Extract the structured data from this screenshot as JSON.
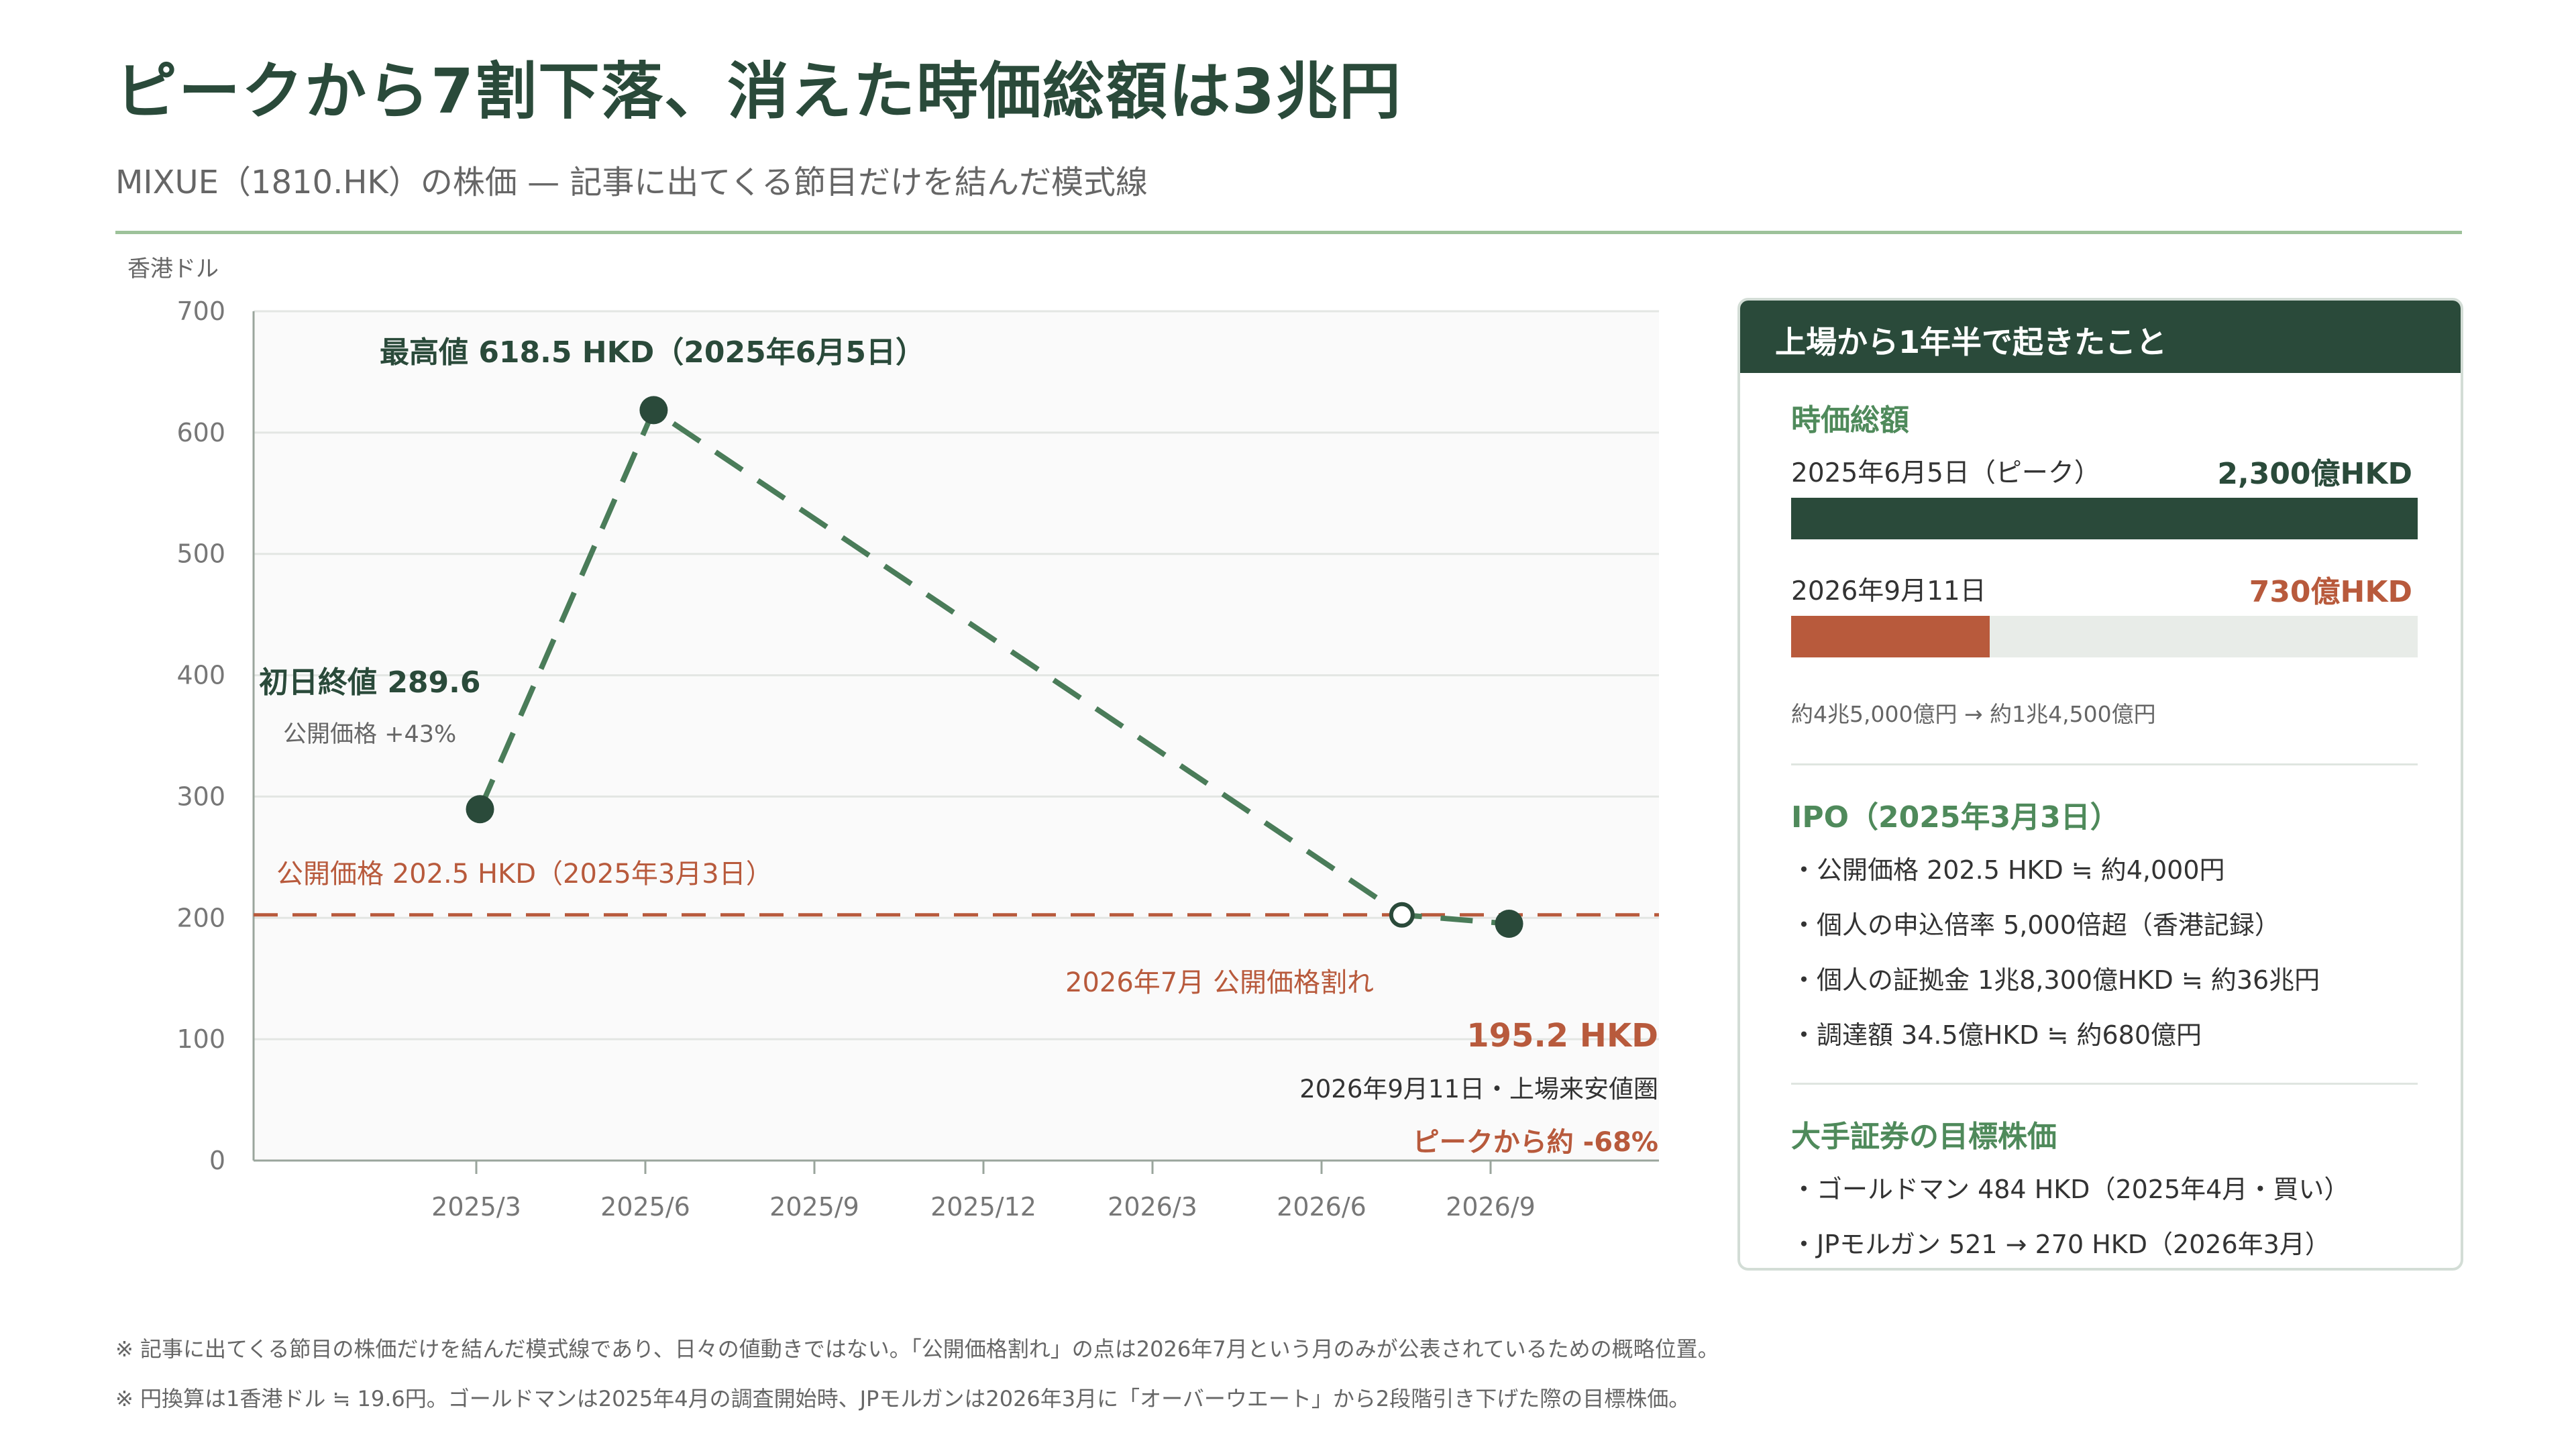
{
  "header": {
    "title": "ピークから7割下落、消えた時価総額は3兆円",
    "subtitle": "MIXUE（1810.HK）の株価 — 記事に出てくる節目だけを結んだ模式線"
  },
  "chart_data": {
    "type": "line",
    "ylabel": "香港ドル",
    "ylim": [
      0,
      700
    ],
    "yticks": [
      "0",
      "100",
      "200",
      "300",
      "400",
      "500",
      "600",
      "700"
    ],
    "xtick_labels": [
      "2025/3",
      "2025/6",
      "2025/9",
      "2025/12",
      "2026/3",
      "2026/6",
      "2026/9"
    ],
    "series": [
      {
        "points": [
          {
            "x": "2025-03-03",
            "y": 289.6,
            "marker": "filled"
          },
          {
            "x": "2025-06-05",
            "y": 618.5,
            "marker": "filled"
          },
          {
            "x": "2026-07-15",
            "y": 202.5,
            "marker": "hollow"
          },
          {
            "x": "2026-09-11",
            "y": 195.2,
            "marker": "filled"
          }
        ],
        "color": "#4a7c59",
        "style": "dashed"
      }
    ],
    "reference_line": {
      "y": 202.5,
      "color": "#b85a3c",
      "style": "dashed"
    },
    "annotations": {
      "peak": "最高値 618.5 HKD（2025年6月5日）",
      "first_day": "初日終値 289.6",
      "first_day_sub": "公開価格 +43%",
      "ipo_line": "公開価格 202.5 HKD（2025年3月3日）",
      "break": "2026年7月 公開価格割れ",
      "latest_value": "195.2 HKD",
      "latest_date": "2026年9月11日・上場来安値圏",
      "latest_change": "ピークから約 -68%"
    }
  },
  "panel": {
    "header": "上場から1年半で起きたこと",
    "market_cap": {
      "title": "時価総額",
      "rows": [
        {
          "label": "2025年6月5日（ピーク）",
          "value": "2,300億HKD",
          "amount": 2300,
          "color": "#2a4a3a"
        },
        {
          "label": "2026年9月11日",
          "value": "730億HKD",
          "amount": 730,
          "color": "#b85a3c"
        }
      ],
      "max": 2300,
      "note": "約4兆5,000億円 → 約1兆4,500億円"
    },
    "ipo": {
      "title": "IPO（2025年3月3日）",
      "items": [
        "・公開価格 202.5 HKD ≒ 約4,000円",
        "・個人の申込倍率 5,000倍超（香港記録）",
        "・個人の証拠金 1兆8,300億HKD ≒ 約36兆円",
        "・調達額 34.5億HKD ≒ 約680億円"
      ]
    },
    "targets": {
      "title": "大手証券の目標株価",
      "items": [
        "・ゴールドマン 484 HKD（2025年4月・買い）",
        "・JPモルガン 521 → 270 HKD（2026年3月）"
      ]
    }
  },
  "footnotes": [
    "※ 記事に出てくる節目の株価だけを結んだ模式線であり、日々の値動きではない。「公開価格割れ」の点は2026年7月という月のみが公表されているための概略位置。",
    "※ 円換算は1香港ドル ≒ 19.6円。ゴールドマンは2025年4月の調査開始時、JPモルガンは2026年3月に「オーバーウエート」から2段階引き下げた際の目標株価。"
  ]
}
